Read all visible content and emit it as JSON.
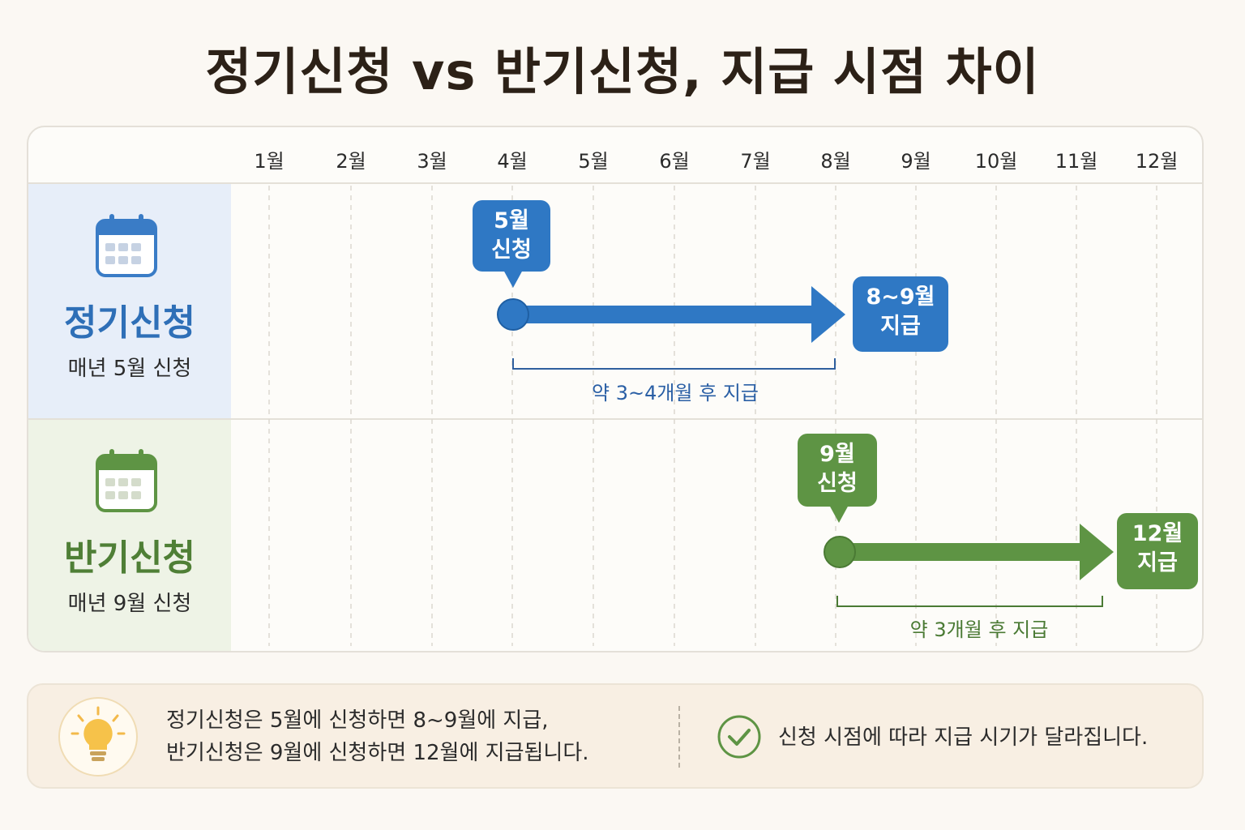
{
  "title": "정기신청 vs 반기신청, 지급 시점 차이",
  "months": [
    "1월",
    "2월",
    "3월",
    "4월",
    "5월",
    "6월",
    "7월",
    "8월",
    "9월",
    "10월",
    "11월",
    "12월"
  ],
  "rows": {
    "regular": {
      "name": "정기신청",
      "subtitle": "매년 5월 신청",
      "apply_line1": "5월",
      "apply_line2": "신청",
      "pay_line1": "8~9월",
      "pay_line2": "지급",
      "span_label": "약 3~4개월 후 지급",
      "color": "#2f78c4"
    },
    "half": {
      "name": "반기신청",
      "subtitle": "매년 9월 신청",
      "apply_line1": "9월",
      "apply_line2": "신청",
      "pay_line1": "12월",
      "pay_line2": "지급",
      "span_label": "약 3개월 후 지급",
      "color": "#5e9444"
    }
  },
  "icons": {
    "calendar": "calendar-icon",
    "tip": "lightbulb-icon",
    "check": "check-circle-icon"
  },
  "footer": {
    "tip_line1": "정기신청은 5월에 신청하면 8~9월에 지급,",
    "tip_line2": "반기신청은 9월에 신청하면 12월에 지급됩니다.",
    "note": "신청 시점에 따라 지급 시기가 달라집니다."
  }
}
